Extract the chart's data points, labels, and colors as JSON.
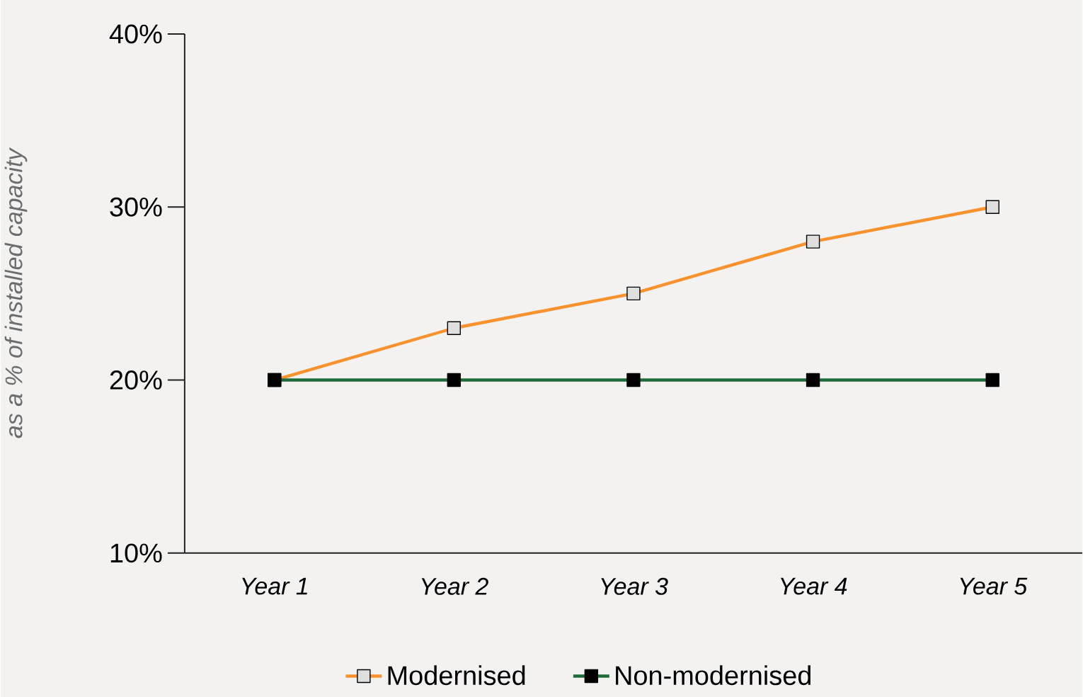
{
  "chart_data": {
    "type": "line",
    "ylabel": "as a % of installed capacity",
    "categories": [
      "Year 1",
      "Year 2",
      "Year 3",
      "Year 4",
      "Year 5"
    ],
    "series": [
      {
        "name": "Modernised",
        "color": "#f7922e",
        "values": [
          20,
          23,
          25,
          28,
          30
        ]
      },
      {
        "name": "Non-modernised",
        "color": "#1e6b3a",
        "values": [
          20,
          20,
          20,
          20,
          20
        ]
      }
    ],
    "ylim": [
      10,
      40
    ],
    "yticks": [
      {
        "value": 10,
        "label": "10%"
      },
      {
        "value": 20,
        "label": "20%"
      },
      {
        "value": 30,
        "label": "30%"
      },
      {
        "value": 40,
        "label": "40%"
      }
    ],
    "grid": false,
    "legend": "bottom",
    "marker": "square",
    "line_style": "solid"
  }
}
